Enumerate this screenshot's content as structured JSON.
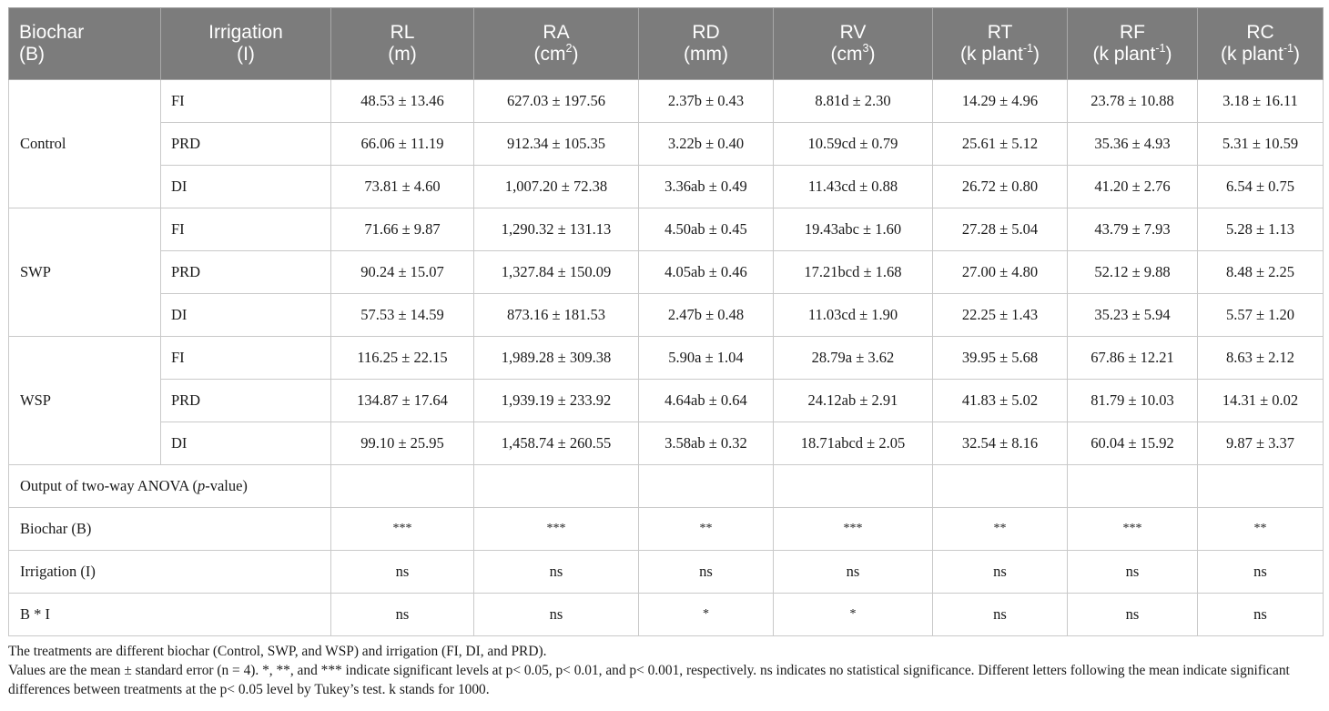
{
  "headers": {
    "biochar": [
      "Biochar",
      "(B)"
    ],
    "irrigation": [
      "Irrigation",
      "(I)"
    ],
    "measures": [
      {
        "abbr": "RL",
        "unit": "(m)",
        "sup": "",
        "tail": ""
      },
      {
        "abbr": "RA",
        "unit": "(cm",
        "sup": "2",
        "tail": ")"
      },
      {
        "abbr": "RD",
        "unit": "(mm)",
        "sup": "",
        "tail": ""
      },
      {
        "abbr": "RV",
        "unit": "(cm",
        "sup": "3",
        "tail": ")"
      },
      {
        "abbr": "RT",
        "unit": "(k plant",
        "sup": "-1",
        "tail": ")"
      },
      {
        "abbr": "RF",
        "unit": "(k plant",
        "sup": "-1",
        "tail": ")"
      },
      {
        "abbr": "RC",
        "unit": "(k plant",
        "sup": "-1",
        "tail": ")"
      }
    ]
  },
  "groups": [
    {
      "biochar": "Control",
      "rows": [
        {
          "irrigation": "FI",
          "values": [
            "48.53 ± 13.46",
            "627.03 ± 197.56",
            "2.37b ± 0.43",
            "8.81d ± 2.30",
            "14.29 ± 4.96",
            "23.78 ± 10.88",
            "3.18 ± 16.11"
          ]
        },
        {
          "irrigation": "PRD",
          "values": [
            "66.06 ± 11.19",
            "912.34 ± 105.35",
            "3.22b ± 0.40",
            "10.59cd ± 0.79",
            "25.61 ± 5.12",
            "35.36 ± 4.93",
            "5.31 ± 10.59"
          ]
        },
        {
          "irrigation": "DI",
          "values": [
            "73.81 ± 4.60",
            "1,007.20 ± 72.38",
            "3.36ab ± 0.49",
            "11.43cd ± 0.88",
            "26.72 ± 0.80",
            "41.20 ± 2.76",
            "6.54 ± 0.75"
          ]
        }
      ]
    },
    {
      "biochar": "SWP",
      "rows": [
        {
          "irrigation": "FI",
          "values": [
            "71.66 ± 9.87",
            "1,290.32 ± 131.13",
            "4.50ab ± 0.45",
            "19.43abc ± 1.60",
            "27.28 ± 5.04",
            "43.79 ± 7.93",
            "5.28 ± 1.13"
          ]
        },
        {
          "irrigation": "PRD",
          "values": [
            "90.24 ± 15.07",
            "1,327.84 ± 150.09",
            "4.05ab ± 0.46",
            "17.21bcd ± 1.68",
            "27.00 ± 4.80",
            "52.12 ± 9.88",
            "8.48 ± 2.25"
          ]
        },
        {
          "irrigation": "DI",
          "values": [
            "57.53 ± 14.59",
            "873.16 ± 181.53",
            "2.47b ± 0.48",
            "11.03cd ± 1.90",
            "22.25 ± 1.43",
            "35.23 ± 5.94",
            "5.57 ± 1.20"
          ]
        }
      ]
    },
    {
      "biochar": "WSP",
      "rows": [
        {
          "irrigation": "FI",
          "values": [
            "116.25 ± 22.15",
            "1,989.28 ± 309.38",
            "5.90a ± 1.04",
            "28.79a ± 3.62",
            "39.95 ± 5.68",
            "67.86 ± 12.21",
            "8.63 ± 2.12"
          ]
        },
        {
          "irrigation": "PRD",
          "values": [
            "134.87 ± 17.64",
            "1,939.19 ± 233.92",
            "4.64ab ± 0.64",
            "24.12ab ± 2.91",
            "41.83 ± 5.02",
            "81.79 ± 10.03",
            "14.31 ± 0.02"
          ]
        },
        {
          "irrigation": "DI",
          "values": [
            "99.10 ± 25.95",
            "1,458.74 ± 260.55",
            "3.58ab ± 0.32",
            "18.71abcd ± 2.05",
            "32.54 ± 8.16",
            "60.04 ± 15.92",
            "9.87 ± 3.37"
          ]
        }
      ]
    }
  ],
  "anova": {
    "title_pre": "Output of two-way ANOVA (",
    "title_italic": "p",
    "title_post": "-value)",
    "rows": [
      {
        "label": "Biochar (B)",
        "values": [
          "***",
          "***",
          "**",
          "***",
          "**",
          "***",
          "**"
        ]
      },
      {
        "label": "Irrigation (I)",
        "values": [
          "ns",
          "ns",
          "ns",
          "ns",
          "ns",
          "ns",
          "ns"
        ]
      },
      {
        "label": "B * I",
        "values": [
          "ns",
          "ns",
          "*",
          "*",
          "ns",
          "ns",
          "ns"
        ]
      }
    ]
  },
  "footnotes": [
    "The treatments are different biochar (Control, SWP, and WSP) and irrigation (FI, DI, and PRD).",
    "Values are the mean ± standard error (n = 4). *, **, and *** indicate significant levels at p< 0.05, p< 0.01, and p< 0.001, respectively. ns indicates no statistical significance. Different letters following the mean indicate significant differences between treatments at the p< 0.05 level by Tukey’s test. k stands for 1000."
  ]
}
